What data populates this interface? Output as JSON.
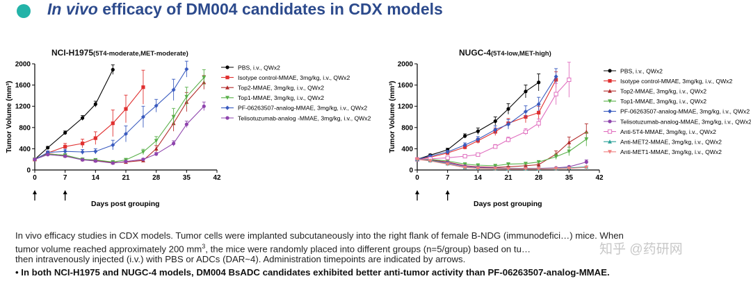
{
  "header": {
    "title_italic": "In vivo",
    "title_rest": " efficacy of DM004 candidates in CDX models",
    "accent_color": "#23b3a8",
    "title_color": "#2c4a8c"
  },
  "chart_data": [
    {
      "type": "line",
      "title_main": "NCI-H1975",
      "title_sub": "(5T4-moderate,MET-moderate)",
      "xlabel": "Days post grouping",
      "ylabel": "Tumor Volume (mm³)",
      "xlim": [
        0,
        42
      ],
      "ylim": [
        0,
        2000
      ],
      "xticks": [
        "0",
        "7",
        "14",
        "21",
        "28",
        "35",
        "42"
      ],
      "yticks": [
        "0",
        "400",
        "800",
        "1200",
        "1600",
        "2000"
      ],
      "dosing_arrows_days": [
        0,
        7
      ],
      "series": [
        {
          "name": "PBS, i.v., QWx2",
          "color": "#000000",
          "marker": "circle",
          "x": [
            0,
            3,
            7,
            11,
            14,
            18
          ],
          "y": [
            200,
            420,
            700,
            980,
            1240,
            1890
          ],
          "err": [
            10,
            25,
            35,
            45,
            55,
            90
          ]
        },
        {
          "name": "Isotype control-MMAE, 3mg/kg, i.v., QWx2",
          "color": "#e03030",
          "marker": "square",
          "x": [
            0,
            3,
            7,
            11,
            14,
            18,
            21,
            25
          ],
          "y": [
            200,
            320,
            440,
            500,
            600,
            880,
            1150,
            1560
          ],
          "err": [
            10,
            30,
            60,
            80,
            120,
            250,
            260,
            320
          ]
        },
        {
          "name": "Top2-MMAE, 3mg/kg, i.v., QWx2",
          "color": "#b22b2b",
          "marker": "triangle",
          "x": [
            0,
            3,
            7,
            11,
            14,
            18,
            21,
            25,
            28,
            32,
            35,
            39
          ],
          "y": [
            200,
            310,
            270,
            200,
            180,
            140,
            150,
            180,
            400,
            880,
            1280,
            1650
          ],
          "err": [
            10,
            20,
            20,
            20,
            20,
            15,
            20,
            30,
            60,
            150,
            180,
            130
          ]
        },
        {
          "name": "Top1-MMAE, 3mg/kg, i.v., QWx2",
          "color": "#59b04a",
          "marker": "triangle-down",
          "x": [
            0,
            3,
            7,
            11,
            14,
            18,
            21,
            25,
            28,
            32,
            35,
            39
          ],
          "y": [
            200,
            300,
            280,
            200,
            190,
            150,
            190,
            340,
            550,
            1000,
            1380,
            1740
          ],
          "err": [
            10,
            20,
            20,
            20,
            20,
            15,
            30,
            50,
            80,
            160,
            180,
            150
          ]
        },
        {
          "name": "PF-06263507-analog-MMAE, 3mg/kg, i.v., QWx2",
          "color": "#3a5bbf",
          "marker": "diamond",
          "x": [
            0,
            3,
            7,
            11,
            14,
            18,
            21,
            25,
            28,
            32,
            35
          ],
          "y": [
            200,
            330,
            350,
            340,
            350,
            470,
            680,
            1000,
            1210,
            1510,
            1900
          ],
          "err": [
            10,
            30,
            40,
            45,
            50,
            90,
            150,
            200,
            120,
            200,
            150
          ]
        },
        {
          "name": "Telisotuzumab-analog -MMAE, 3mg/kg, i.v., QWx2",
          "color": "#8e44ad",
          "marker": "circle",
          "x": [
            0,
            3,
            7,
            11,
            14,
            18,
            21,
            25,
            28,
            32,
            35,
            39
          ],
          "y": [
            200,
            290,
            260,
            190,
            170,
            130,
            160,
            200,
            300,
            500,
            860,
            1200
          ],
          "err": [
            10,
            15,
            15,
            15,
            15,
            10,
            15,
            20,
            30,
            50,
            60,
            80
          ]
        }
      ]
    },
    {
      "type": "line",
      "title_main": "NUGC-4",
      "title_sub": "(5T4-low,MET-high)",
      "xlabel": "Days post grouping",
      "ylabel": "Tumor Volume (mm³)",
      "xlim": [
        0,
        42
      ],
      "ylim": [
        0,
        2000
      ],
      "xticks": [
        "0",
        "7",
        "14",
        "21",
        "28",
        "35",
        "42"
      ],
      "yticks": [
        "0",
        "400",
        "800",
        "1200",
        "1600",
        "2000"
      ],
      "dosing_arrows_days": [
        0,
        7
      ],
      "series": [
        {
          "name": "PBS, i.v., QWx2",
          "color": "#000000",
          "marker": "circle",
          "x": [
            0,
            3,
            7,
            11,
            14,
            18,
            21,
            25,
            28
          ],
          "y": [
            200,
            280,
            380,
            640,
            730,
            920,
            1150,
            1480,
            1650
          ],
          "err": [
            10,
            20,
            30,
            40,
            60,
            80,
            100,
            120,
            160
          ]
        },
        {
          "name": "Isotype control-MMAE, 3mg/kg, i.v., QWx2",
          "color": "#e03030",
          "marker": "square",
          "x": [
            0,
            3,
            7,
            11,
            14,
            18,
            21,
            25,
            28,
            32
          ],
          "y": [
            200,
            240,
            320,
            430,
            550,
            720,
            880,
            1000,
            1080,
            1700
          ],
          "err": [
            10,
            20,
            30,
            40,
            50,
            70,
            90,
            110,
            120,
            150
          ]
        },
        {
          "name": "Top2-MMAE, 3mg/kg, i.v., QWx2",
          "color": "#b22b2b",
          "marker": "triangle",
          "x": [
            0,
            3,
            7,
            11,
            14,
            18,
            21,
            25,
            28,
            32,
            35,
            39
          ],
          "y": [
            200,
            190,
            150,
            80,
            60,
            50,
            60,
            80,
            100,
            300,
            520,
            720
          ],
          "err": [
            10,
            15,
            15,
            10,
            10,
            10,
            10,
            15,
            20,
            60,
            100,
            150
          ]
        },
        {
          "name": "Top1-MMAE, 3mg/kg, i.v., QWx2",
          "color": "#59b04a",
          "marker": "triangle-down",
          "x": [
            0,
            3,
            7,
            11,
            14,
            18,
            21,
            25,
            28,
            32,
            35,
            39
          ],
          "y": [
            200,
            200,
            170,
            110,
            90,
            80,
            110,
            120,
            150,
            250,
            350,
            580
          ],
          "err": [
            10,
            15,
            15,
            10,
            10,
            10,
            15,
            20,
            25,
            50,
            80,
            130
          ]
        },
        {
          "name": "PF-06263507-analog-MMAE, 3mg/kg, i.v., QWx2",
          "color": "#3a5bbf",
          "marker": "diamond",
          "x": [
            0,
            3,
            7,
            11,
            14,
            18,
            21,
            25,
            28,
            32
          ],
          "y": [
            200,
            260,
            340,
            470,
            580,
            760,
            860,
            1100,
            1240,
            1760
          ],
          "err": [
            10,
            20,
            30,
            40,
            50,
            70,
            90,
            110,
            130,
            150
          ]
        },
        {
          "name": "Telisotuzumab-analog-MMAE, 3mg/kg, i.v., QWx2",
          "color": "#8e44ad",
          "marker": "circle",
          "x": [
            0,
            3,
            7,
            11,
            14,
            18,
            21,
            25,
            28,
            32,
            35,
            39
          ],
          "y": [
            200,
            180,
            140,
            70,
            50,
            40,
            30,
            30,
            30,
            40,
            60,
            150
          ],
          "err": [
            10,
            15,
            15,
            10,
            10,
            10,
            8,
            8,
            8,
            10,
            15,
            40
          ]
        },
        {
          "name": "Anti-5T4-MMAE, 3mg/kg, i.v., QWx2",
          "color": "#e06fbf",
          "marker": "square-open",
          "x": [
            0,
            3,
            7,
            11,
            14,
            18,
            21,
            25,
            28,
            32,
            35
          ],
          "y": [
            200,
            210,
            230,
            260,
            290,
            440,
            570,
            720,
            880,
            1430,
            1700
          ],
          "err": [
            10,
            15,
            20,
            20,
            25,
            40,
            50,
            60,
            80,
            200,
            330
          ]
        },
        {
          "name": "Anti-MET2-MMAE, 3mg/kg, i.v., QWx2",
          "color": "#2aa198",
          "marker": "triangle",
          "x": [
            0,
            3,
            7,
            11,
            14,
            18,
            21,
            25,
            28,
            32,
            35,
            39
          ],
          "y": [
            200,
            180,
            120,
            50,
            35,
            30,
            25,
            25,
            25,
            30,
            40,
            60
          ],
          "err": [
            10,
            15,
            15,
            10,
            8,
            8,
            5,
            5,
            5,
            8,
            10,
            15
          ]
        },
        {
          "name": "Anti-MET1-MMAE, 3mg/kg, i.v., QWx2",
          "color": "#f08080",
          "marker": "triangle-down",
          "x": [
            0,
            3,
            7,
            11,
            14,
            18,
            21,
            25,
            28,
            32,
            35,
            39
          ],
          "y": [
            200,
            170,
            110,
            45,
            30,
            25,
            20,
            20,
            20,
            25,
            30,
            50
          ],
          "err": [
            10,
            15,
            15,
            10,
            8,
            8,
            5,
            5,
            5,
            8,
            10,
            15
          ]
        }
      ]
    }
  ],
  "description": {
    "line1": "In vivo efficacy studies in CDX models. Tumor cells were implanted subcutaneously into the right flank of female B-NDG (immunodefici…) mice. When",
    "line2a": "tumor volume reached approximately 200 mm",
    "line2_sup": "3",
    "line2b": ", the mice were randomly placed into different groups (n=5/group) based on tu…",
    "line3": "then intravenously injected (i.v.) with PBS or ADCs (DAR~4). Administration timepoints are indicated by arrows.",
    "bullet": "•  In both NCI-H1975 and NUGC-4 models, DM004 BsADC candidates exhibited better anti-tumor activity than PF-06263507-analog-MMAE."
  },
  "watermark": "知乎 @药研网"
}
